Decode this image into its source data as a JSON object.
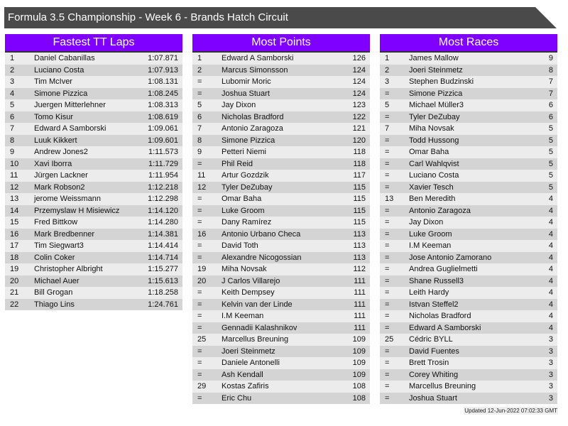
{
  "title": "Formula 3.5 Championship - Week 6 - Brands Hatch Circuit",
  "colors": {
    "header": "#8000ff",
    "title_bar": "#4a4a4a"
  },
  "tables": [
    {
      "heading": "Fastest TT Laps",
      "rows": [
        [
          "1",
          "Daniel Cabanillas",
          "1:07.871"
        ],
        [
          "2",
          "Luciano Costa",
          "1:07.913"
        ],
        [
          "3",
          "Tim McIver",
          "1:08.131"
        ],
        [
          "4",
          "Simone Pizzica",
          "1:08.245"
        ],
        [
          "5",
          "Juergen Mitterlehner",
          "1:08.313"
        ],
        [
          "6",
          "Tomo Kisur",
          "1:08.619"
        ],
        [
          "7",
          "Edward A Samborski",
          "1:09.061"
        ],
        [
          "8",
          "Luuk Kikkert",
          "1:09.601"
        ],
        [
          "9",
          "Andrew Jones2",
          "1:11.573"
        ],
        [
          "10",
          "Xavi Iborra",
          "1:11.729"
        ],
        [
          "11",
          "Jürgen Lackner",
          "1:11.954"
        ],
        [
          "12",
          "Mark Robson2",
          "1:12.218"
        ],
        [
          "13",
          "jerome Weissmann",
          "1:12.298"
        ],
        [
          "14",
          "Przemyslaw H Misiewicz",
          "1:14.120"
        ],
        [
          "15",
          "Fred Bittkow",
          "1:14.280"
        ],
        [
          "16",
          "Mark Bredbenner",
          "1:14.381"
        ],
        [
          "17",
          "Tim Siegwart3",
          "1:14.414"
        ],
        [
          "18",
          "Colin Coker",
          "1:14.714"
        ],
        [
          "19",
          "Christopher Albright",
          "1:15.277"
        ],
        [
          "20",
          "Michael Auer",
          "1:15.613"
        ],
        [
          "21",
          "Bill Grogan",
          "1:18.258"
        ],
        [
          "22",
          "Thiago Lins",
          "1:24.761"
        ]
      ]
    },
    {
      "heading": "Most Points",
      "rows": [
        [
          "1",
          "Edward A Samborski",
          "126"
        ],
        [
          "2",
          "Marcus Simonsson",
          "124"
        ],
        [
          "=",
          "Lubomir Moric",
          "124"
        ],
        [
          "=",
          "Joshua Stuart",
          "124"
        ],
        [
          "5",
          "Jay Dixon",
          "123"
        ],
        [
          "6",
          "Nicholas Bradford",
          "122"
        ],
        [
          "7",
          "Antonio Zaragoza",
          "121"
        ],
        [
          "8",
          "Simone Pizzica",
          "120"
        ],
        [
          "9",
          "Petteri Niemi",
          "118"
        ],
        [
          "=",
          "Phil Reid",
          "118"
        ],
        [
          "11",
          "Artur Gozdzik",
          "117"
        ],
        [
          "12",
          "Tyler DeZubay",
          "115"
        ],
        [
          "=",
          "Omar Baha",
          "115"
        ],
        [
          "=",
          "Luke Groom",
          "115"
        ],
        [
          "=",
          "Dany Ramírez",
          "115"
        ],
        [
          "16",
          "Antonio Urbano Checa",
          "113"
        ],
        [
          "=",
          "David Toth",
          "113"
        ],
        [
          "=",
          "Alexandre Nicogossian",
          "113"
        ],
        [
          "19",
          "Miha Novsak",
          "112"
        ],
        [
          "20",
          "J Carlos Villarejo",
          "111"
        ],
        [
          "=",
          "Keith Dempsey",
          "111"
        ],
        [
          "=",
          "Kelvin van der Linde",
          "111"
        ],
        [
          "=",
          "I.M Keeman",
          "111"
        ],
        [
          "=",
          "Gennadii Kalashnikov",
          "111"
        ],
        [
          "25",
          "Marcellus Breuning",
          "109"
        ],
        [
          "=",
          "Joeri Steinmetz",
          "109"
        ],
        [
          "=",
          "Daniele Antonelli",
          "109"
        ],
        [
          "=",
          "Ash Kendall",
          "109"
        ],
        [
          "29",
          "Kostas Zafiris",
          "108"
        ],
        [
          "=",
          "Eric Chu",
          "108"
        ]
      ]
    },
    {
      "heading": "Most Races",
      "rows": [
        [
          "1",
          "James Mallow",
          "9"
        ],
        [
          "2",
          "Joeri Steinmetz",
          "8"
        ],
        [
          "3",
          "Stephen Budzinski",
          "7"
        ],
        [
          "=",
          "Simone Pizzica",
          "7"
        ],
        [
          "5",
          "Michael Müller3",
          "6"
        ],
        [
          "=",
          "Tyler DeZubay",
          "6"
        ],
        [
          "7",
          "Miha Novsak",
          "5"
        ],
        [
          "=",
          "Todd Hussong",
          "5"
        ],
        [
          "=",
          "Omar Baha",
          "5"
        ],
        [
          "=",
          "Carl Wahlqvist",
          "5"
        ],
        [
          "=",
          "Luciano Costa",
          "5"
        ],
        [
          "=",
          "Xavier Tesch",
          "5"
        ],
        [
          "13",
          "Ben Meredith",
          "4"
        ],
        [
          "=",
          "Antonio Zaragoza",
          "4"
        ],
        [
          "=",
          "Jay Dixon",
          "4"
        ],
        [
          "=",
          "Luke Groom",
          "4"
        ],
        [
          "=",
          "I.M Keeman",
          "4"
        ],
        [
          "=",
          "Jose Antonio Zamorano",
          "4"
        ],
        [
          "=",
          "Andrea Guglielmetti",
          "4"
        ],
        [
          "=",
          "Shane Russell3",
          "4"
        ],
        [
          "=",
          "Leith Hardy",
          "4"
        ],
        [
          "=",
          "Istvan Steffel2",
          "4"
        ],
        [
          "=",
          "Nicholas Bradford",
          "4"
        ],
        [
          "=",
          "Edward A Samborski",
          "4"
        ],
        [
          "25",
          "Cédric BYLL",
          "3"
        ],
        [
          "=",
          "David Fuentes",
          "3"
        ],
        [
          "=",
          "Brett Trosin",
          "3"
        ],
        [
          "=",
          "Corey Whiting",
          "3"
        ],
        [
          "=",
          "Marcellus Breuning",
          "3"
        ],
        [
          "=",
          "Joshua Stuart",
          "3"
        ]
      ]
    }
  ],
  "updated": "Updated 12-Jun-2022 07:02:33 GMT"
}
